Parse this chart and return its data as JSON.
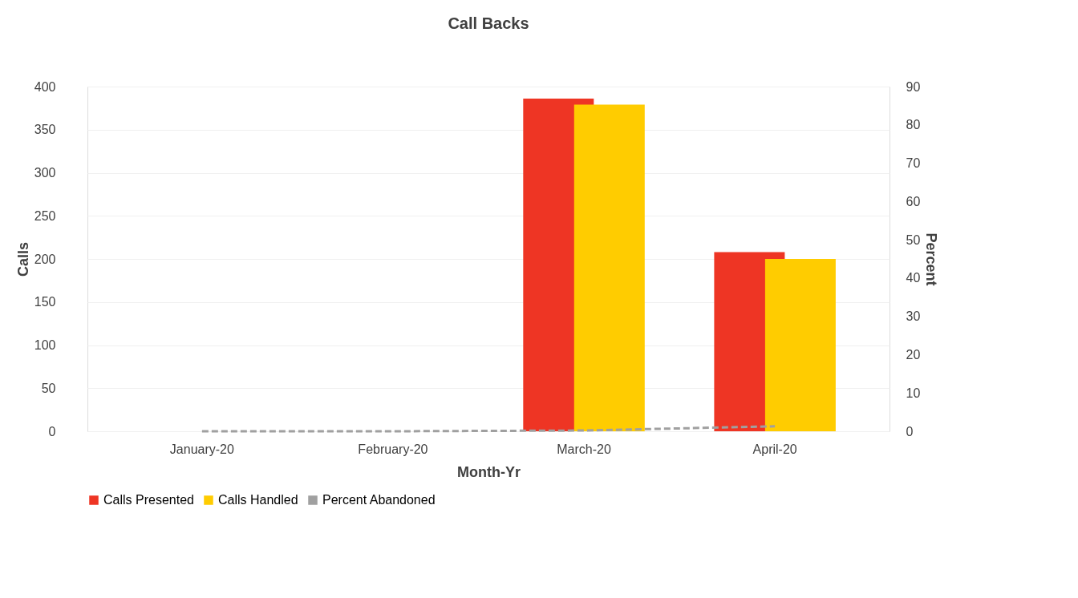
{
  "chart_data": {
    "type": "bar",
    "title": "Call Backs",
    "xlabel": "Month-Yr",
    "ylabel": "Calls",
    "y2label": "Percent",
    "categories": [
      "January-20",
      "February-20",
      "March-20",
      "April-20"
    ],
    "series": [
      {
        "name": "Calls Presented",
        "color": "#ee3524",
        "values": [
          0,
          0,
          386,
          208
        ]
      },
      {
        "name": "Calls Handled",
        "color": "#ffcc00",
        "values": [
          0,
          0,
          379,
          200
        ]
      },
      {
        "name": "Percent Abandoned",
        "type": "line",
        "axis": "y2",
        "line_style": "dashed",
        "color": "#a0a0a0",
        "values": [
          0,
          0,
          0.2,
          1.3
        ]
      }
    ],
    "ylim": [
      0,
      400
    ],
    "yticks": [
      0,
      50,
      100,
      150,
      200,
      250,
      300,
      350,
      400
    ],
    "y2lim": [
      0,
      90
    ],
    "y2ticks": [
      0,
      10,
      20,
      30,
      40,
      50,
      60,
      70,
      80,
      90
    ],
    "grid": "y",
    "legend": "bottom",
    "marker": "none"
  }
}
